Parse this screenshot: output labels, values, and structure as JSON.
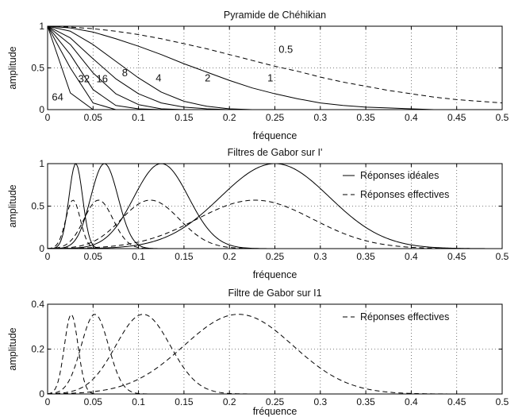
{
  "chart_data": [
    {
      "type": "line",
      "title": "Pyramide de Chéhikian",
      "xlabel": "fréquence",
      "ylabel": "amplitude",
      "xlim": [
        0,
        0.5
      ],
      "ylim": [
        0,
        1
      ],
      "xticks": [
        "0",
        "0.05",
        "0.1",
        "0.15",
        "0.2",
        "0.25",
        "0.3",
        "0.35",
        "0.4",
        "0.45",
        "0.5"
      ],
      "yticks": [
        "0",
        "0.5",
        "1"
      ],
      "grid": true,
      "x": [
        0,
        0.025,
        0.05,
        0.075,
        0.1,
        0.125,
        0.15,
        0.175,
        0.2,
        0.225,
        0.25,
        0.275,
        0.3,
        0.325,
        0.35,
        0.375,
        0.4,
        0.425,
        0.45,
        0.475,
        0.5
      ],
      "series": [
        {
          "name": "0.5",
          "style": "dashed",
          "values": [
            1,
            0.99,
            0.97,
            0.94,
            0.9,
            0.85,
            0.79,
            0.73,
            0.66,
            0.59,
            0.52,
            0.46,
            0.39,
            0.33,
            0.28,
            0.23,
            0.19,
            0.15,
            0.12,
            0.1,
            0.08
          ]
        },
        {
          "name": "1",
          "style": "solid",
          "values": [
            1,
            0.98,
            0.93,
            0.85,
            0.76,
            0.66,
            0.55,
            0.45,
            0.35,
            0.26,
            0.19,
            0.13,
            0.08,
            0.05,
            0.03,
            0.02,
            0.01,
            0,
            0,
            0,
            0
          ]
        },
        {
          "name": "2",
          "style": "solid",
          "values": [
            1,
            0.94,
            0.78,
            0.58,
            0.38,
            0.21,
            0.1,
            0.04,
            0.01,
            0,
            0,
            0,
            0,
            0,
            0,
            0,
            0,
            0,
            0,
            0,
            0
          ]
        },
        {
          "name": "4",
          "style": "solid",
          "values": [
            1,
            0.86,
            0.61,
            0.37,
            0.19,
            0.08,
            0.03,
            0.01,
            0,
            0,
            0,
            0,
            0,
            0,
            0,
            0,
            0,
            0,
            0,
            0,
            0
          ]
        },
        {
          "name": "8",
          "style": "solid",
          "values": [
            1,
            0.78,
            0.44,
            0.19,
            0.06,
            0.01,
            0,
            0,
            0,
            0,
            0,
            0,
            0,
            0,
            0,
            0,
            0,
            0,
            0,
            0,
            0
          ]
        },
        {
          "name": "16",
          "style": "solid",
          "values": [
            1,
            0.66,
            0.24,
            0.05,
            0.01,
            0,
            0,
            0,
            0,
            0,
            0,
            0,
            0,
            0,
            0,
            0,
            0,
            0,
            0,
            0,
            0
          ]
        },
        {
          "name": "32",
          "style": "solid",
          "values": [
            1,
            0.5,
            0.08,
            0,
            0,
            0,
            0,
            0,
            0,
            0,
            0,
            0,
            0,
            0,
            0,
            0,
            0,
            0,
            0,
            0,
            0
          ]
        },
        {
          "name": "64",
          "style": "solid",
          "values": [
            1,
            0.2,
            0,
            0,
            0,
            0,
            0,
            0,
            0,
            0,
            0,
            0,
            0,
            0,
            0,
            0,
            0,
            0,
            0,
            0,
            0
          ]
        }
      ],
      "labels": [
        {
          "text": "0.5",
          "x": 0.262,
          "y": 0.68
        },
        {
          "text": "1",
          "x": 0.245,
          "y": 0.34
        },
        {
          "text": "2",
          "x": 0.176,
          "y": 0.34
        },
        {
          "text": "4",
          "x": 0.122,
          "y": 0.34
        },
        {
          "text": "8",
          "x": 0.085,
          "y": 0.4
        },
        {
          "text": "16",
          "x": 0.06,
          "y": 0.33
        },
        {
          "text": "32",
          "x": 0.04,
          "y": 0.33
        },
        {
          "text": "64",
          "x": 0.011,
          "y": 0.11
        }
      ]
    },
    {
      "type": "line",
      "title": "Filtres de Gabor sur I'",
      "xlabel": "fréquence",
      "ylabel": "amplitude",
      "xlim": [
        0,
        0.5
      ],
      "ylim": [
        0,
        1
      ],
      "xticks": [
        "0",
        "0.05",
        "0.1",
        "0.15",
        "0.2",
        "0.25",
        "0.3",
        "0.35",
        "0.4",
        "0.45",
        "0.5"
      ],
      "yticks": [
        "0",
        "0.5",
        "1"
      ],
      "grid": true,
      "legend": {
        "placement": "top-right",
        "entries": [
          {
            "text": "Réponses idéales",
            "style": "solid"
          },
          {
            "text": "Réponses effectives",
            "style": "dashed"
          }
        ]
      },
      "series": [
        {
          "name": "Réponses idéales",
          "style": "solid",
          "shape": "gaussian",
          "peaks": [
            {
              "center": 0.031,
              "amplitude": 1.0,
              "sigma": 0.0075
            },
            {
              "center": 0.0625,
              "amplitude": 1.0,
              "sigma": 0.015
            },
            {
              "center": 0.125,
              "amplitude": 1.0,
              "sigma": 0.03
            },
            {
              "center": 0.25,
              "amplitude": 1.0,
              "sigma": 0.06
            }
          ]
        },
        {
          "name": "Réponses effectives",
          "style": "dashed",
          "shape": "gaussian",
          "peaks": [
            {
              "center": 0.028,
              "amplitude": 0.57,
              "sigma": 0.008
            },
            {
              "center": 0.056,
              "amplitude": 0.57,
              "sigma": 0.016
            },
            {
              "center": 0.113,
              "amplitude": 0.57,
              "sigma": 0.032
            },
            {
              "center": 0.228,
              "amplitude": 0.57,
              "sigma": 0.064
            }
          ]
        }
      ]
    },
    {
      "type": "line",
      "title": "Filtre de Gabor sur I1",
      "xlabel": "fréquence",
      "ylabel": "amplitude",
      "xlim": [
        0,
        0.5
      ],
      "ylim": [
        0,
        0.4
      ],
      "xticks": [
        "0",
        "0.05",
        "0.1",
        "0.15",
        "0.2",
        "0.25",
        "0.3",
        "0.35",
        "0.4",
        "0.45",
        "0.5"
      ],
      "yticks": [
        "0",
        "0.2",
        "0.4"
      ],
      "grid": true,
      "legend": {
        "placement": "top-right",
        "entries": [
          {
            "text": "Réponses effectives",
            "style": "dashed"
          }
        ]
      },
      "series": [
        {
          "name": "Réponses effectives",
          "style": "dashed",
          "shape": "gaussian",
          "peaks": [
            {
              "center": 0.026,
              "amplitude": 0.355,
              "sigma": 0.0075
            },
            {
              "center": 0.052,
              "amplitude": 0.355,
              "sigma": 0.015
            },
            {
              "center": 0.105,
              "amplitude": 0.355,
              "sigma": 0.03
            },
            {
              "center": 0.21,
              "amplitude": 0.355,
              "sigma": 0.06
            }
          ]
        }
      ]
    }
  ]
}
